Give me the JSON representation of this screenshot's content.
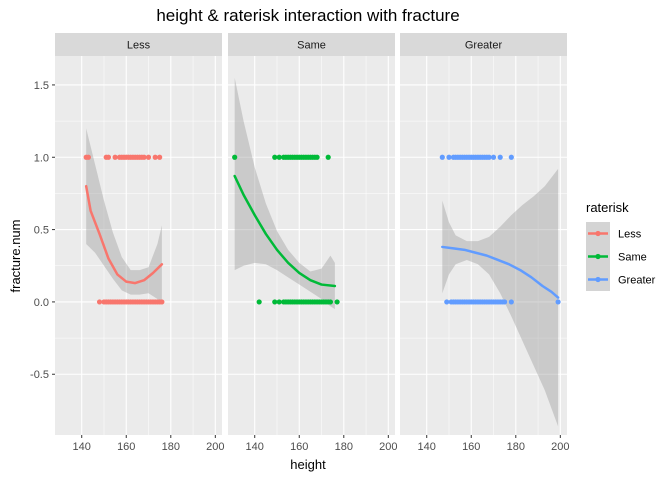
{
  "chart_data": {
    "type": "scatter",
    "title": "height & raterisk  interaction with fracture",
    "xlabel": "height",
    "ylabel": "fracture.num",
    "xlim": [
      128,
      203
    ],
    "ylim": [
      -0.92,
      1.7
    ],
    "x_ticks": [
      140,
      160,
      180,
      200
    ],
    "y_ticks": [
      -0.5,
      0.0,
      0.5,
      1.0,
      1.5
    ],
    "y_tick_labels": [
      "-0.5",
      "0.0",
      "0.5",
      "1.0",
      "1.5"
    ],
    "grid": true,
    "legend": {
      "title": "raterisk",
      "position": "right",
      "entries": [
        "Less",
        "Same",
        "Greater"
      ]
    },
    "panels": [
      {
        "name": "Less",
        "color": "#F8766D",
        "points_y1": [
          142,
          143,
          151,
          152,
          155,
          157,
          158,
          159,
          160,
          161,
          162,
          163,
          164,
          165,
          166,
          167,
          168,
          170,
          173,
          175
        ],
        "points_y0": [
          148,
          150,
          151,
          152,
          153,
          154,
          155,
          156,
          157,
          158,
          159,
          160,
          161,
          162,
          163,
          164,
          165,
          166,
          167,
          168,
          169,
          170,
          171,
          172,
          173,
          174,
          175,
          176
        ],
        "smooth": [
          [
            142,
            0.8
          ],
          [
            144,
            0.63
          ],
          [
            148,
            0.47
          ],
          [
            152,
            0.3
          ],
          [
            156,
            0.19
          ],
          [
            160,
            0.14
          ],
          [
            164,
            0.13
          ],
          [
            168,
            0.15
          ],
          [
            172,
            0.2
          ],
          [
            176,
            0.26
          ]
        ],
        "ribbon_upper": [
          [
            142,
            1.2
          ],
          [
            146,
            0.95
          ],
          [
            150,
            0.7
          ],
          [
            154,
            0.48
          ],
          [
            158,
            0.31
          ],
          [
            162,
            0.22
          ],
          [
            166,
            0.22
          ],
          [
            170,
            0.24
          ],
          [
            174,
            0.4
          ],
          [
            176,
            0.53
          ]
        ],
        "ribbon_lower": [
          [
            142,
            0.4
          ],
          [
            146,
            0.34
          ],
          [
            150,
            0.25
          ],
          [
            154,
            0.16
          ],
          [
            158,
            0.08
          ],
          [
            162,
            0.05
          ],
          [
            166,
            0.05
          ],
          [
            170,
            0.06
          ],
          [
            174,
            0.02
          ],
          [
            176,
            -0.01
          ]
        ]
      },
      {
        "name": "Same",
        "color": "#00BA38",
        "points_y1": [
          131,
          149,
          151,
          153,
          154,
          155,
          156,
          157,
          158,
          159,
          160,
          161,
          162,
          163,
          164,
          165,
          166,
          167,
          168,
          173
        ],
        "points_y0": [
          142,
          149,
          151,
          153,
          154,
          155,
          156,
          157,
          158,
          159,
          160,
          161,
          162,
          163,
          164,
          165,
          166,
          167,
          168,
          169,
          170,
          171,
          172,
          173,
          174,
          177
        ],
        "smooth": [
          [
            131,
            0.87
          ],
          [
            135,
            0.74
          ],
          [
            140,
            0.6
          ],
          [
            145,
            0.47
          ],
          [
            150,
            0.36
          ],
          [
            155,
            0.27
          ],
          [
            160,
            0.2
          ],
          [
            165,
            0.15
          ],
          [
            170,
            0.12
          ],
          [
            176,
            0.11
          ]
        ],
        "ribbon_upper": [
          [
            131,
            1.55
          ],
          [
            135,
            1.25
          ],
          [
            140,
            0.93
          ],
          [
            145,
            0.68
          ],
          [
            150,
            0.49
          ],
          [
            155,
            0.36
          ],
          [
            160,
            0.27
          ],
          [
            165,
            0.21
          ],
          [
            170,
            0.23
          ],
          [
            174,
            0.32
          ],
          [
            176,
            0.27
          ]
        ],
        "ribbon_lower": [
          [
            131,
            0.22
          ],
          [
            135,
            0.25
          ],
          [
            140,
            0.27
          ],
          [
            145,
            0.26
          ],
          [
            150,
            0.22
          ],
          [
            155,
            0.17
          ],
          [
            160,
            0.12
          ],
          [
            165,
            0.07
          ],
          [
            170,
            0.02
          ],
          [
            174,
            -0.03
          ],
          [
            176,
            -0.05
          ]
        ]
      },
      {
        "name": "Greater",
        "color": "#619CFF",
        "points_y1": [
          147,
          150,
          152,
          153,
          154,
          155,
          156,
          157,
          158,
          159,
          160,
          161,
          162,
          163,
          164,
          165,
          166,
          167,
          168,
          170,
          173,
          178
        ],
        "points_y0": [
          149,
          151,
          152,
          153,
          154,
          155,
          156,
          157,
          158,
          159,
          160,
          161,
          162,
          163,
          164,
          165,
          166,
          167,
          168,
          169,
          170,
          171,
          172,
          173,
          174,
          175,
          178,
          199
        ],
        "smooth": [
          [
            147,
            0.38
          ],
          [
            152,
            0.37
          ],
          [
            157,
            0.36
          ],
          [
            162,
            0.34
          ],
          [
            167,
            0.32
          ],
          [
            172,
            0.29
          ],
          [
            177,
            0.26
          ],
          [
            182,
            0.22
          ],
          [
            187,
            0.17
          ],
          [
            192,
            0.11
          ],
          [
            196,
            0.07
          ],
          [
            199,
            0.03
          ]
        ],
        "ribbon_upper": [
          [
            147,
            0.7
          ],
          [
            150,
            0.55
          ],
          [
            153,
            0.46
          ],
          [
            158,
            0.42
          ],
          [
            163,
            0.42
          ],
          [
            168,
            0.45
          ],
          [
            173,
            0.52
          ],
          [
            178,
            0.6
          ],
          [
            183,
            0.67
          ],
          [
            188,
            0.73
          ],
          [
            193,
            0.8
          ],
          [
            199,
            0.92
          ]
        ],
        "ribbon_lower": [
          [
            147,
            0.06
          ],
          [
            150,
            0.19
          ],
          [
            153,
            0.26
          ],
          [
            158,
            0.29
          ],
          [
            163,
            0.26
          ],
          [
            168,
            0.19
          ],
          [
            173,
            0.06
          ],
          [
            178,
            -0.1
          ],
          [
            183,
            -0.27
          ],
          [
            188,
            -0.44
          ],
          [
            193,
            -0.61
          ],
          [
            199,
            -0.86
          ]
        ]
      }
    ]
  }
}
